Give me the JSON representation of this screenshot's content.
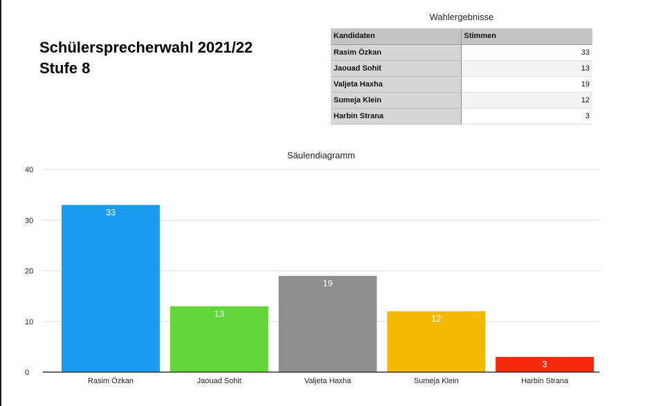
{
  "header": {
    "title_line1": "Schülersprecherwahl 2021/22",
    "title_line2": "Stufe 8"
  },
  "results_table": {
    "caption": "Wahlergebnisse",
    "columns": [
      "Kandidaten",
      "Stimmen"
    ],
    "rows": [
      {
        "name": "Rasim Özkan",
        "votes": "33"
      },
      {
        "name": "Jaouad Sohit",
        "votes": "13"
      },
      {
        "name": "Valjeta Haxha",
        "votes": "19"
      },
      {
        "name": "Sumeja Klein",
        "votes": "12"
      },
      {
        "name": "Harbin Strana",
        "votes": "3"
      }
    ]
  },
  "chart_data": {
    "type": "bar",
    "title": "Säulendiagramm",
    "categories": [
      "Rasim Özkan",
      "Jaouad Sohit",
      "Valjeta Haxha",
      "Sumeja Klein",
      "Harbin Strana"
    ],
    "values": [
      33,
      13,
      19,
      12,
      3
    ],
    "colors": [
      "#1a9cf0",
      "#62d63b",
      "#8e8e8e",
      "#f5b800",
      "#f52a0c"
    ],
    "ylim": [
      0,
      40
    ],
    "yticks": [
      0,
      10,
      20,
      30,
      40
    ],
    "grid": true,
    "data_labels": true,
    "legend": "none"
  }
}
